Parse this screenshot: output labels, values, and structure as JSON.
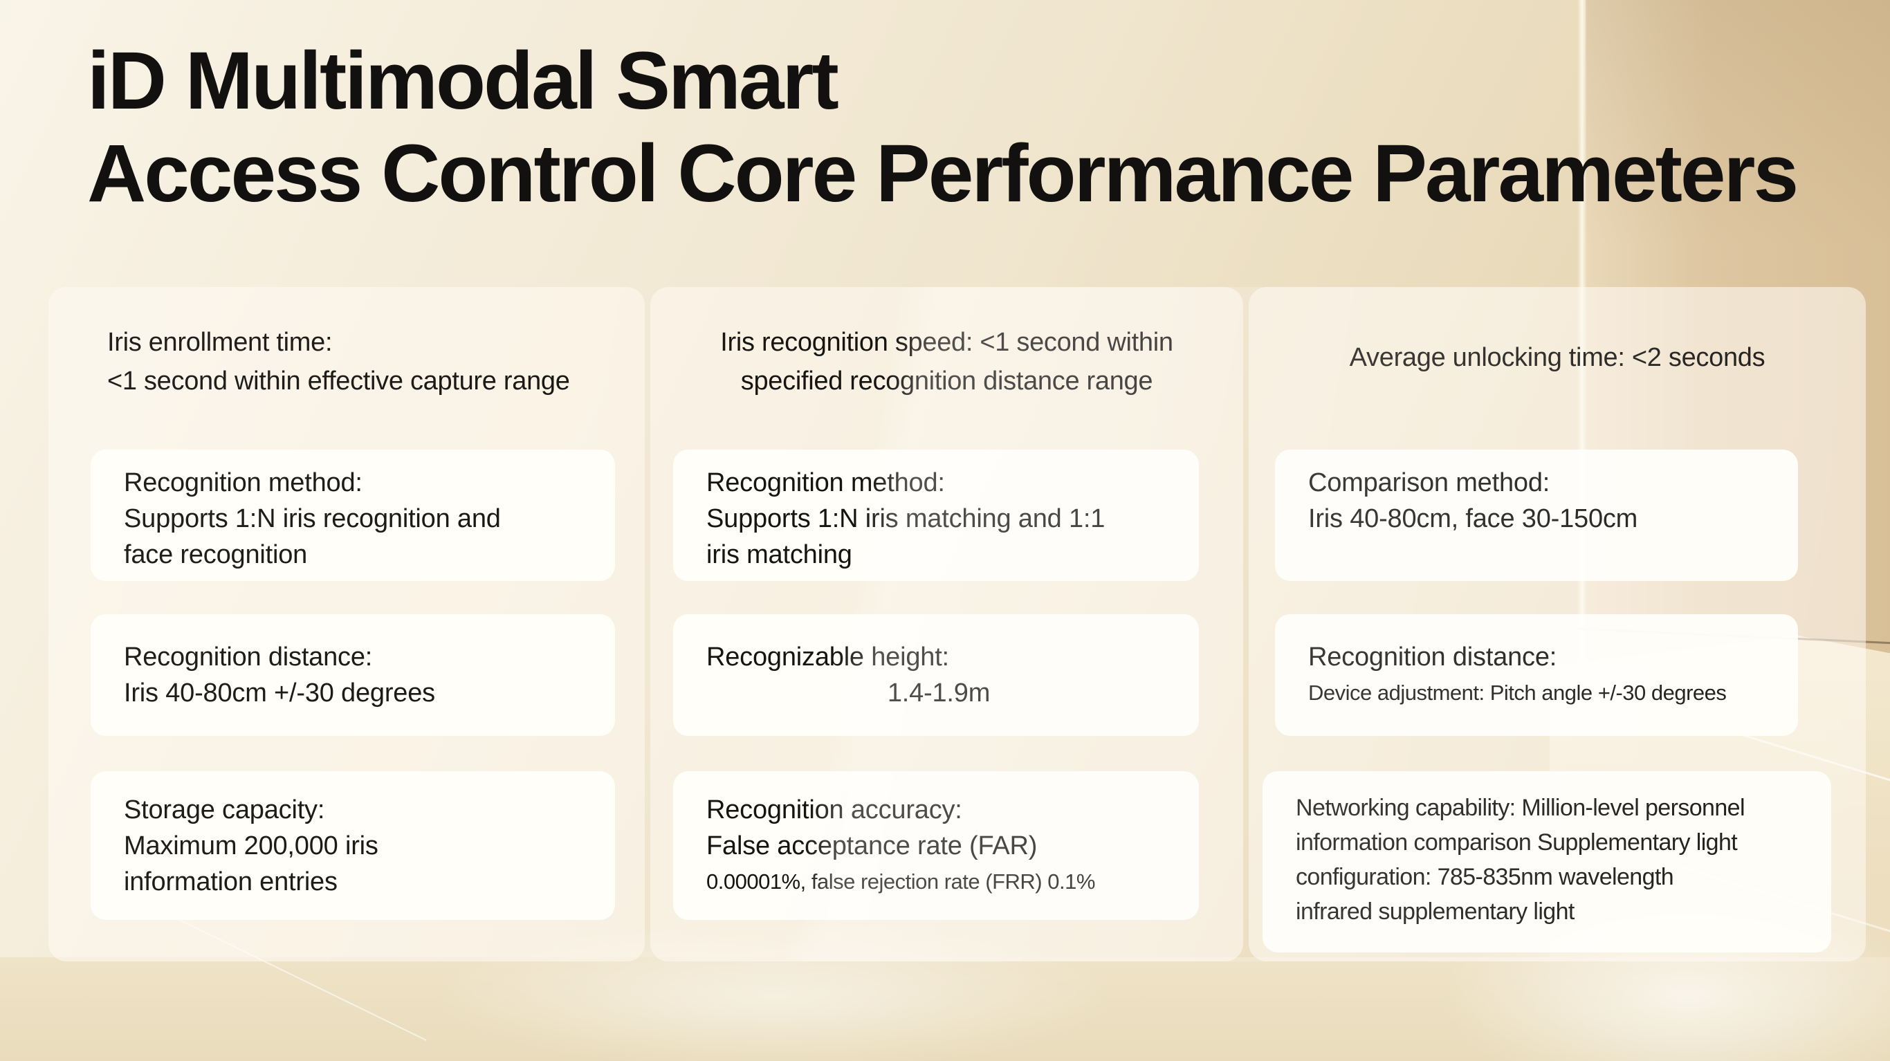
{
  "title": {
    "line1": "iD Multimodal Smart",
    "line2": "Access Control Core Performance Parameters"
  },
  "columns": [
    {
      "header_lines": [
        "Iris enrollment time:",
        "<1 second within effective capture range"
      ],
      "cards": [
        {
          "lines": [
            "Recognition method:",
            "Supports 1:N iris recognition and",
            "face recognition"
          ]
        },
        {
          "lines": [
            "Recognition distance:",
            "Iris 40-80cm +/-30 degrees"
          ]
        },
        {
          "lines": [
            "Storage capacity:",
            "Maximum 200,000 iris",
            "information entries"
          ]
        }
      ]
    },
    {
      "header_lines": [
        "Iris recognition speed: <1 second within",
        "specified recognition distance range"
      ],
      "cards": [
        {
          "lines": [
            "Recognition method:",
            "Supports 1:N iris matching and 1:1",
            "iris matching"
          ]
        },
        {
          "lines": [
            "Recognizable height:",
            "1.4-1.9m"
          ]
        },
        {
          "lines": [
            "Recognition accuracy:",
            "False acceptance rate (FAR)",
            "0.00001%, false rejection rate (FRR) 0.1%"
          ]
        }
      ]
    },
    {
      "header_lines": [
        "Average unlocking time:  <2 seconds"
      ],
      "cards": [
        {
          "lines": [
            "Comparison method:",
            "Iris 40-80cm, face 30-150cm"
          ]
        },
        {
          "lines": [
            "Recognition distance:",
            "Device adjustment: Pitch angle +/-30 degrees"
          ]
        },
        {
          "lines": [
            "Networking capability: Million-level personnel",
            "information comparison Supplementary light",
            "configuration: 785-835nm wavelength",
            "infrared supplementary light"
          ]
        }
      ]
    }
  ],
  "colors": {
    "title_text": "#121110",
    "body_text": "#15130f",
    "wall_light": "#f4ecd9",
    "wall_dark": "#d8bf98",
    "floor": "#eddfc0",
    "panel_tint": "#fffaf2",
    "card_bg": "#fffefa"
  }
}
